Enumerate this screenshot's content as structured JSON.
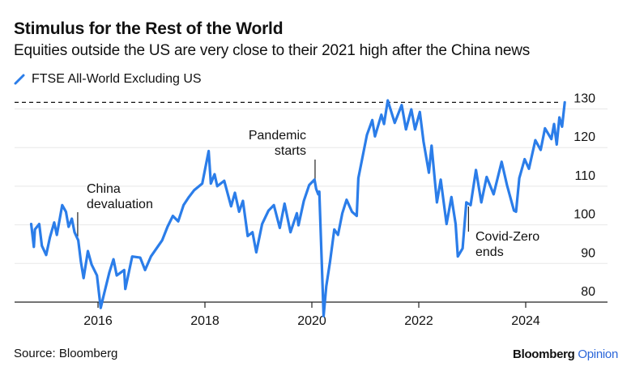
{
  "title": "Stimulus for the Rest of the World",
  "subtitle": "Equities outside the US are very close to their 2021 high after the China news",
  "source": "Source: Bloomberg",
  "logo": {
    "brand": "Bloomberg",
    "product": "Opinion"
  },
  "colors": {
    "series": "#2b7de9",
    "brand_accent": "#2b66d9"
  },
  "chart_data": {
    "type": "line",
    "title": "Stimulus for the Rest of the World",
    "xlabel": "",
    "ylabel": "",
    "xlim": [
      2014.7,
      2025.2
    ],
    "ylim": [
      80,
      132
    ],
    "x_ticks": [
      2016,
      2018,
      2020,
      2022,
      2024
    ],
    "x_tick_labels": [
      "2016",
      "2018",
      "2020",
      "2022",
      "2024"
    ],
    "y_ticks": [
      80,
      90,
      100,
      110,
      120,
      130
    ],
    "y_tick_labels": [
      "80",
      "90",
      "100",
      "110",
      "120",
      "130"
    ],
    "y_axis_position": "right",
    "grid": true,
    "legend": {
      "placement": "top-left",
      "entries": [
        "FTSE All-World Excluding US"
      ]
    },
    "reference_line": {
      "value": 131.7,
      "style": "dashed",
      "meaning": "2021 high"
    },
    "annotations": [
      {
        "text_lines": [
          "China",
          "devaluation"
        ],
        "x": 2015.62
      },
      {
        "text_lines": [
          "Pandemic",
          "starts"
        ],
        "x": 2020.06
      },
      {
        "text_lines": [
          "Covid-Zero",
          "ends"
        ],
        "x": 2022.93
      }
    ],
    "series": [
      {
        "name": "FTSE All-World Excluding US",
        "x": [
          2014.75,
          2014.8,
          2014.82,
          2014.9,
          2014.95,
          2015.03,
          2015.1,
          2015.18,
          2015.23,
          2015.33,
          2015.4,
          2015.45,
          2015.51,
          2015.56,
          2015.63,
          2015.68,
          2015.73,
          2015.81,
          2015.88,
          2015.98,
          2016.05,
          2016.11,
          2016.21,
          2016.29,
          2016.35,
          2016.49,
          2016.51,
          2016.64,
          2016.79,
          2016.88,
          2016.99,
          2017.2,
          2017.3,
          2017.4,
          2017.5,
          2017.6,
          2017.7,
          2017.8,
          2017.95,
          2018.07,
          2018.11,
          2018.18,
          2018.23,
          2018.36,
          2018.49,
          2018.56,
          2018.64,
          2018.71,
          2018.8,
          2018.89,
          2018.96,
          2019.07,
          2019.19,
          2019.29,
          2019.4,
          2019.49,
          2019.6,
          2019.72,
          2019.75,
          2019.85,
          2019.95,
          2020.05,
          2020.08,
          2020.12,
          2020.14,
          2020.22,
          2020.27,
          2020.34,
          2020.42,
          2020.49,
          2020.57,
          2020.65,
          2020.75,
          2020.84,
          2020.87,
          2020.95,
          2021.03,
          2021.13,
          2021.18,
          2021.3,
          2021.35,
          2021.42,
          2021.55,
          2021.68,
          2021.76,
          2021.86,
          2021.93,
          2022.02,
          2022.09,
          2022.19,
          2022.24,
          2022.34,
          2022.41,
          2022.52,
          2022.61,
          2022.69,
          2022.73,
          2022.82,
          2022.89,
          2022.97,
          2023.07,
          2023.17,
          2023.27,
          2023.4,
          2023.55,
          2023.65,
          2023.78,
          2023.82,
          2023.88,
          2023.98,
          2024.06,
          2024.18,
          2024.28,
          2024.36,
          2024.48,
          2024.53,
          2024.58,
          2024.63,
          2024.68,
          2024.73
        ],
        "values": [
          100.2,
          94.3,
          98.8,
          100.2,
          94.6,
          92.2,
          96.7,
          100.6,
          97.4,
          105.1,
          103.4,
          99.5,
          101.6,
          98.1,
          96.0,
          90.4,
          86.2,
          93.2,
          89.7,
          86.9,
          78.5,
          82.0,
          87.6,
          91.1,
          86.9,
          88.3,
          83.4,
          91.8,
          91.5,
          88.3,
          91.8,
          96.0,
          99.5,
          102.3,
          100.9,
          105.1,
          107.2,
          109.0,
          110.7,
          119.1,
          110.7,
          113.1,
          110.0,
          111.4,
          104.8,
          108.3,
          103.4,
          106.2,
          97.1,
          98.1,
          92.9,
          100.2,
          103.7,
          105.1,
          99.2,
          105.5,
          98.1,
          103.0,
          99.9,
          106.2,
          110.3,
          111.7,
          109.3,
          107.9,
          108.6,
          76.4,
          84.1,
          90.4,
          98.8,
          97.4,
          103.0,
          106.5,
          103.4,
          102.3,
          112.1,
          117.7,
          123.3,
          127.1,
          122.9,
          128.5,
          126.1,
          132.2,
          126.4,
          131.0,
          124.7,
          129.9,
          124.7,
          129.2,
          121.5,
          113.5,
          120.5,
          105.8,
          111.7,
          100.2,
          107.2,
          100.2,
          91.8,
          93.9,
          105.8,
          105.1,
          114.2,
          105.8,
          112.4,
          107.9,
          116.3,
          110.3,
          103.7,
          103.4,
          112.1,
          117.0,
          114.5,
          121.9,
          119.4,
          125.0,
          122.2,
          126.1,
          120.8,
          127.8,
          125.4,
          131.7
        ]
      }
    ]
  }
}
